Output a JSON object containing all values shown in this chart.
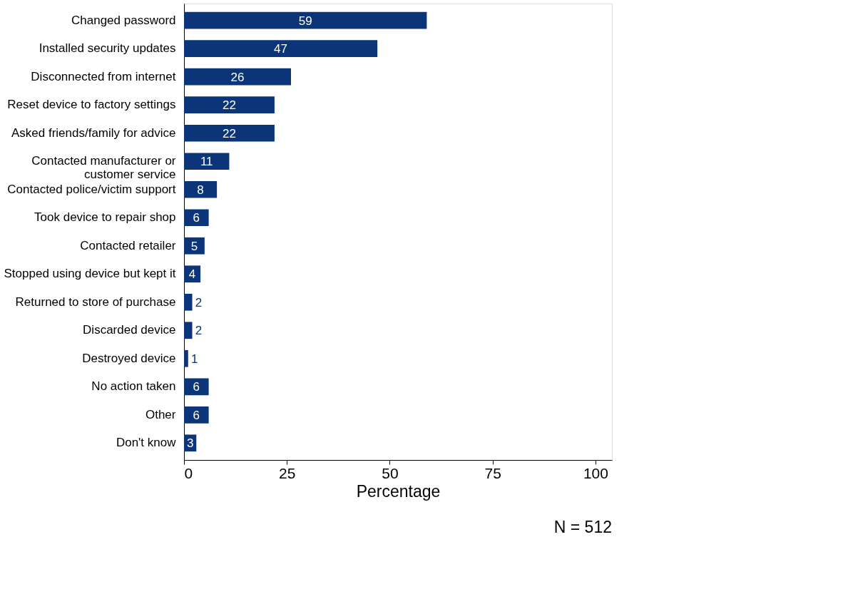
{
  "chart_data": {
    "type": "bar",
    "orientation": "horizontal",
    "xlabel": "Percentage",
    "categories": [
      "Changed password",
      "Installed security updates",
      "Disconnected from internet",
      "Reset device to factory settings",
      "Asked friends/family for advice",
      "Contacted manufacturer or\ncustomer service",
      "Contacted police/victim support",
      "Took device to repair shop",
      "Contacted retailer",
      "Stopped using device but kept it",
      "Returned to store of purchase",
      "Discarded device",
      "Destroyed device",
      "No action taken",
      "Other",
      "Don't know"
    ],
    "values": [
      59,
      47,
      26,
      22,
      22,
      11,
      8,
      6,
      5,
      4,
      2,
      2,
      1,
      6,
      6,
      3
    ],
    "color": "#0b3578",
    "data_labels": true,
    "xlim": [
      0,
      104
    ],
    "xticks": [
      0,
      25,
      50,
      75,
      100
    ],
    "grid": false,
    "annotations": [
      "N = 512"
    ]
  }
}
